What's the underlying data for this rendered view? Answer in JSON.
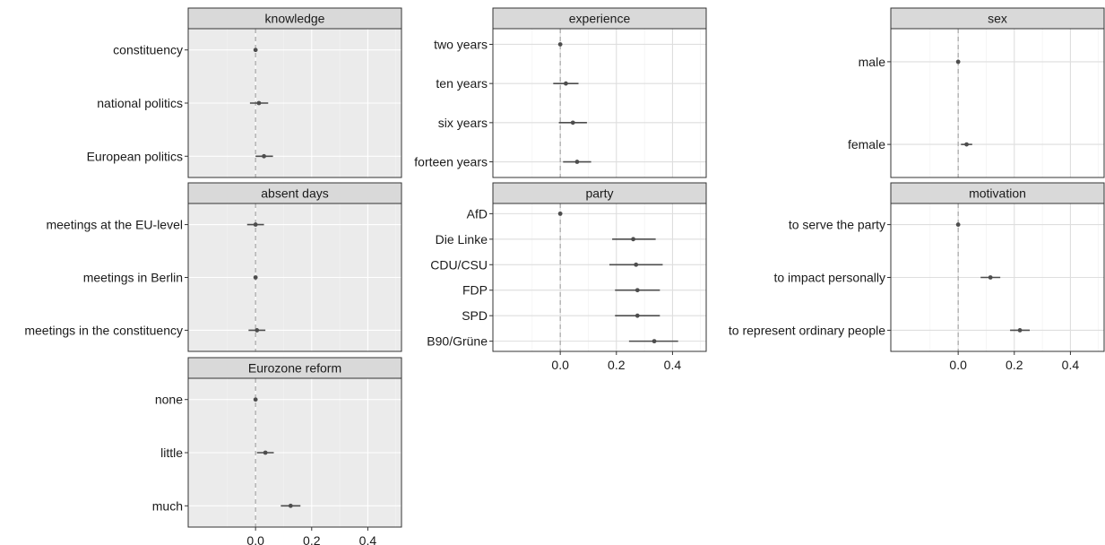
{
  "chart_data": {
    "type": "scatter",
    "subtype": "coefficient-plot-with-error-bars",
    "grid": true,
    "reference_line": 0,
    "xlim": [
      -0.24,
      0.52
    ],
    "x_ticks": [
      "0.0",
      "0.2",
      "0.4"
    ],
    "x_tick_values": [
      0.0,
      0.2,
      0.4
    ],
    "colors": {
      "panel_bg": "#ebebeb",
      "panel_bg_alt": "#ffffff",
      "strip_bg": "#d9d9d9",
      "point": "#4d4d4d",
      "ref_line": "#a6a6a6",
      "grid": "#dedede"
    },
    "facets": [
      {
        "title": "knowledge",
        "shaded": true,
        "categories": [
          "constituency",
          "national politics",
          "European politics"
        ],
        "estimate": [
          0.0,
          0.012,
          0.03
        ],
        "lower": [
          0.0,
          -0.02,
          0.0
        ],
        "upper": [
          0.0,
          0.045,
          0.062
        ]
      },
      {
        "title": "experience",
        "shaded": false,
        "categories": [
          "two years",
          "ten years",
          "six years",
          "forteen years"
        ],
        "estimate": [
          0.0,
          0.02,
          0.045,
          0.06
        ],
        "lower": [
          0.0,
          -0.025,
          -0.005,
          0.01
        ],
        "upper": [
          0.0,
          0.065,
          0.095,
          0.11
        ]
      },
      {
        "title": "sex",
        "shaded": false,
        "categories": [
          "male",
          "female"
        ],
        "estimate": [
          0.0,
          0.03
        ],
        "lower": [
          0.0,
          0.01
        ],
        "upper": [
          0.0,
          0.05
        ]
      },
      {
        "title": "absent days",
        "shaded": true,
        "categories": [
          "meetings at the EU-level",
          "meetings in Berlin",
          "meetings in the constituency"
        ],
        "estimate": [
          0.0,
          0.0,
          0.005
        ],
        "lower": [
          -0.03,
          0.0,
          -0.025
        ],
        "upper": [
          0.03,
          0.0,
          0.035
        ]
      },
      {
        "title": "party",
        "shaded": false,
        "categories": [
          "AfD",
          "Die Linke",
          "CDU/CSU",
          "FDP",
          "SPD",
          "B90/Grüne"
        ],
        "estimate": [
          0.0,
          0.26,
          0.27,
          0.275,
          0.275,
          0.335
        ],
        "lower": [
          0.0,
          0.185,
          0.175,
          0.195,
          0.195,
          0.245
        ],
        "upper": [
          0.0,
          0.34,
          0.365,
          0.355,
          0.355,
          0.42
        ]
      },
      {
        "title": "motivation",
        "shaded": false,
        "categories": [
          "to serve the party",
          "to impact personally",
          "to represent ordinary people"
        ],
        "estimate": [
          0.0,
          0.115,
          0.22
        ],
        "lower": [
          0.0,
          0.08,
          0.185
        ],
        "upper": [
          0.0,
          0.15,
          0.255
        ]
      },
      {
        "title": "Eurozone reform",
        "shaded": true,
        "categories": [
          "none",
          "little",
          "much"
        ],
        "estimate": [
          0.0,
          0.035,
          0.125
        ],
        "lower": [
          0.0,
          0.005,
          0.09
        ],
        "upper": [
          0.0,
          0.065,
          0.16
        ]
      }
    ]
  }
}
